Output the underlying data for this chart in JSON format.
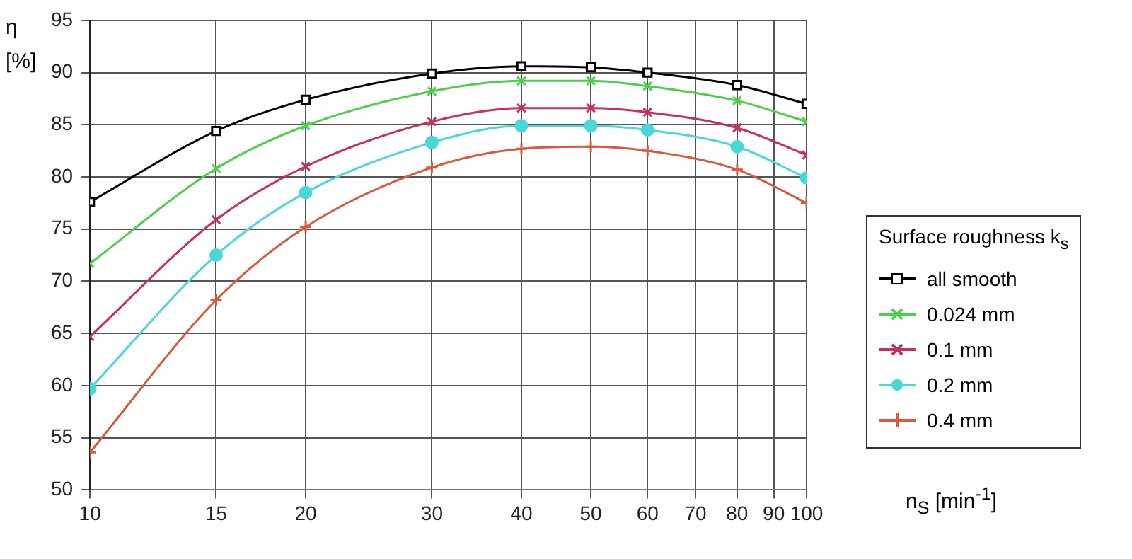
{
  "chart_data": {
    "type": "line",
    "xlabel": "n$_{S}$ [min$^{-1}$]",
    "ylabel": "η [%]",
    "legend_title": "Surface roughness k$_{s}$",
    "x": [
      10,
      15,
      20,
      30,
      40,
      50,
      60,
      80,
      100
    ],
    "series": [
      {
        "name": "all smooth",
        "color": "#000000",
        "marker": "square",
        "values": [
          77.6,
          84.4,
          87.4,
          89.9,
          90.6,
          90.5,
          90.0,
          88.8,
          87.0
        ]
      },
      {
        "name": "0.024 mm",
        "color": "#4cd04c",
        "marker": "cross",
        "values": [
          71.7,
          80.8,
          84.9,
          88.2,
          89.2,
          89.2,
          88.7,
          87.3,
          85.3
        ]
      },
      {
        "name": "0.1 mm",
        "color": "#c8305a",
        "marker": "cross",
        "values": [
          64.7,
          75.9,
          81.0,
          85.3,
          86.6,
          86.6,
          86.2,
          84.7,
          82.1
        ]
      },
      {
        "name": "0.2 mm",
        "color": "#48d8d8",
        "marker": "circle",
        "values": [
          59.7,
          72.5,
          78.5,
          83.3,
          84.9,
          84.9,
          84.5,
          82.9,
          79.9
        ]
      },
      {
        "name": "0.4 mm",
        "color": "#d85a3c",
        "marker": "plus",
        "values": [
          53.6,
          68.2,
          75.2,
          80.9,
          82.7,
          82.9,
          82.5,
          80.7,
          77.5
        ]
      }
    ],
    "log": "x",
    "xlim": [
      10,
      100
    ],
    "ylim": [
      50,
      95
    ],
    "xticks": [
      10,
      15,
      20,
      30,
      40,
      50,
      60,
      70,
      80,
      90,
      100
    ],
    "yticks": [
      50,
      55,
      60,
      65,
      70,
      75,
      80,
      85,
      90,
      95
    ],
    "grid": true,
    "legend": "right",
    "line_style": "solid"
  }
}
